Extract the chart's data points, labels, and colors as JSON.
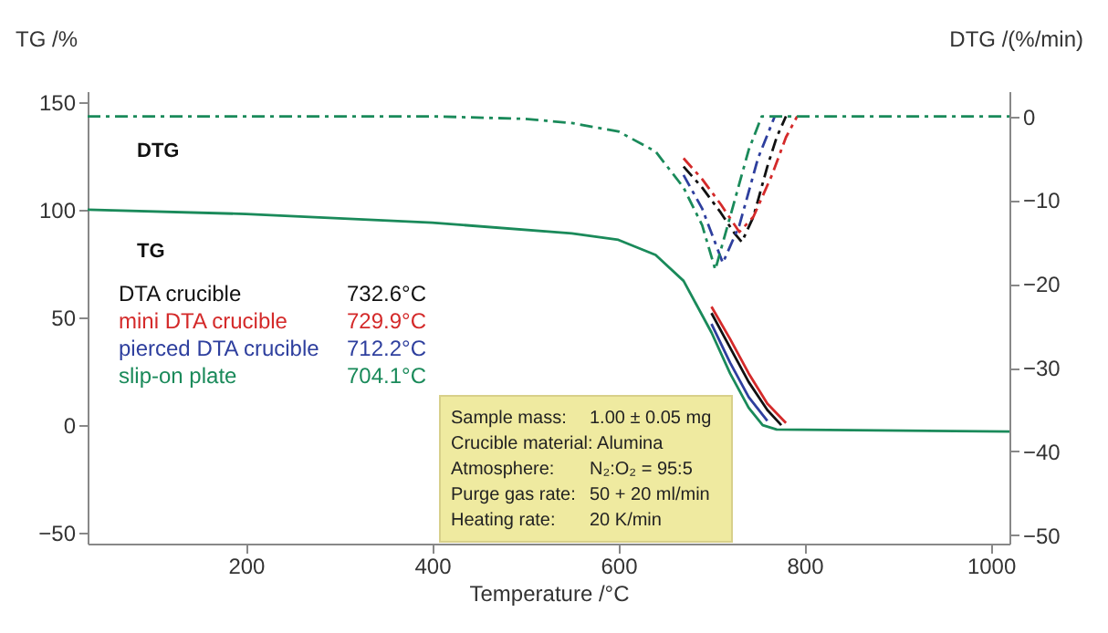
{
  "chart_data": {
    "type": "line",
    "xlabel": "Temperature /°C",
    "ylabel": "TG /%",
    "y2label": "DTG /(%/min)",
    "xlim": [
      30,
      1020
    ],
    "xticks": [
      200,
      400,
      600,
      800,
      1000
    ],
    "ylim": [
      -55,
      155
    ],
    "yticks": [
      -50,
      0,
      50,
      100,
      150
    ],
    "y2lim": [
      -51,
      3
    ],
    "y2ticks": [
      -50,
      -40,
      -30,
      -20,
      -10,
      0
    ],
    "grid": false,
    "legend": "left",
    "line_style": "solid",
    "marker": "none",
    "series": [
      {
        "name": "DTA crucible",
        "color": "#111111",
        "x": [
          700,
          720,
          740,
          760,
          775
        ],
        "values": [
          52,
          36,
          20,
          7,
          0
        ]
      },
      {
        "name": "mini DTA crucible",
        "color": "#d42a2a",
        "x": [
          700,
          720,
          740,
          760,
          780
        ],
        "values": [
          55,
          40,
          24,
          10,
          1
        ]
      },
      {
        "name": "pierced DTA crucible",
        "color": "#2e3f9e",
        "x": [
          700,
          720,
          740,
          760
        ],
        "values": [
          47,
          29,
          13,
          2
        ]
      },
      {
        "name": "slip-on plate",
        "color": "#1a8a5a",
        "x": [
          30,
          200,
          400,
          550,
          600,
          640,
          670,
          700,
          720,
          740,
          755,
          770,
          1020
        ],
        "values": [
          100,
          98,
          94,
          89,
          86,
          79,
          67,
          43,
          24,
          8,
          0,
          -2,
          -3
        ]
      },
      {
        "color": "#111111",
        "axis": "y2",
        "line_style": "dashed",
        "x": [
          670,
          690,
          710,
          725,
          732.6,
          745,
          760,
          770,
          780
        ],
        "values": [
          -6,
          -8.5,
          -11.5,
          -14,
          -15,
          -12,
          -6,
          -2.5,
          0
        ]
      },
      {
        "color": "#d42a2a",
        "axis": "y2",
        "line_style": "dashed",
        "x": [
          670,
          690,
          710,
          729.9,
          745,
          765,
          780,
          792
        ],
        "values": [
          -5,
          -7.5,
          -10.5,
          -13.8,
          -12,
          -7,
          -2.5,
          0
        ]
      },
      {
        "color": "#2e3f9e",
        "axis": "y2",
        "line_style": "dashed",
        "x": [
          670,
          690,
          712.2,
          730,
          750,
          768
        ],
        "values": [
          -7,
          -11,
          -17.5,
          -13,
          -5,
          0
        ]
      },
      {
        "color": "#1a8a5a",
        "axis": "y2",
        "line_style": "dashed",
        "x": [
          30,
          200,
          400,
          500,
          550,
          600,
          640,
          670,
          690,
          704.1,
          720,
          740,
          754,
          1020
        ],
        "values": [
          0,
          0,
          0,
          -0.3,
          -0.8,
          -1.8,
          -4.2,
          -8.5,
          -13,
          -18.3,
          -12,
          -4,
          0,
          0
        ]
      }
    ],
    "annotations": [
      "DTG",
      "TG",
      "732.6°C",
      "729.9°C",
      "712.2°C",
      "704.1°C",
      "Sample mass:",
      "1.00 ± 0.05 mg",
      "Crucible material: Alumina",
      "Atmosphere:",
      "N₂:O₂ = 95:5",
      "Purge gas rate:",
      "50 + 20 ml/min",
      "Heating rate:",
      "20 K/min"
    ]
  }
}
